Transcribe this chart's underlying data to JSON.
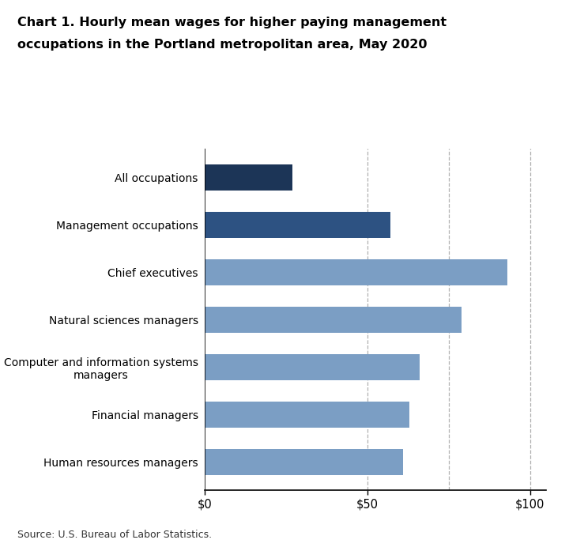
{
  "title_line1": "Chart 1. Hourly mean wages for higher paying management",
  "title_line2": "occupations in the Portland metropolitan area, May 2020",
  "categories": [
    "Human resources managers",
    "Financial managers",
    "Computer and information systems\nmanagers",
    "Natural sciences managers",
    "Chief executives",
    "Management occupations",
    "All occupations"
  ],
  "values": [
    61,
    63,
    66,
    79,
    93,
    57,
    27
  ],
  "bar_colors": [
    "#7b9ec4",
    "#7b9ec4",
    "#7b9ec4",
    "#7b9ec4",
    "#7b9ec4",
    "#2d5282",
    "#1c3557"
  ],
  "xlim": [
    0,
    105
  ],
  "xticks": [
    0,
    50,
    100
  ],
  "xticklabels": [
    "$0",
    "$50",
    "$100"
  ],
  "dashed_lines": [
    50,
    75,
    100
  ],
  "source": "Source: U.S. Bureau of Labor Statistics.",
  "background_color": "#ffffff",
  "bar_height": 0.55,
  "figsize": [
    7.2,
    6.97
  ],
  "dpi": 100
}
